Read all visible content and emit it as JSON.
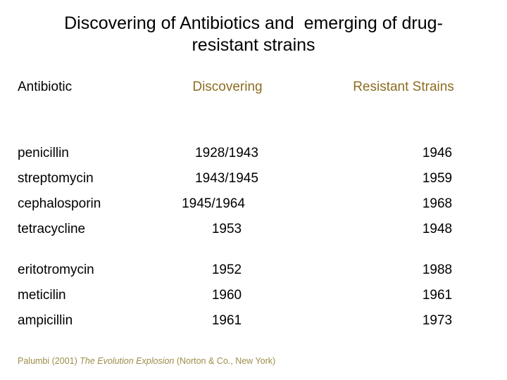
{
  "slide": {
    "title": {
      "line1": "Discovering of Antibiotics and  emerging of drug-",
      "line2": "resistant strains"
    },
    "table": {
      "headers": {
        "antibiotic": "Antibiotic",
        "discovering": "Discovering",
        "resistant": "Resistant Strains"
      },
      "rows": [
        {
          "antibiotic": "penicillin",
          "discovering": "1928/1943",
          "resistant": "1946"
        },
        {
          "antibiotic": "streptomycin",
          "discovering": "1943/1945",
          "resistant": "1959"
        },
        {
          "antibiotic": "cephalosporin",
          "discovering": "1945/1964",
          "resistant": "1968"
        },
        {
          "antibiotic": "tetracycline",
          "discovering": "1953",
          "resistant": "1948"
        },
        {
          "antibiotic": "eritotromycin",
          "discovering": "1952",
          "resistant": "1988"
        },
        {
          "antibiotic": "meticilin",
          "discovering": "1960",
          "resistant": "1961"
        },
        {
          "antibiotic": "ampicillin",
          "discovering": "1961",
          "resistant": "1973"
        }
      ]
    },
    "citation": {
      "prefix": "Palumbi (2001) ",
      "book_title": "The Evolution Explosion",
      "suffix": " (Norton & Co., New York)"
    },
    "colors": {
      "header_text": "#8C6E21",
      "citation_text": "#9C8D49",
      "body_text": "#000000",
      "background": "#FFFFFF"
    }
  }
}
